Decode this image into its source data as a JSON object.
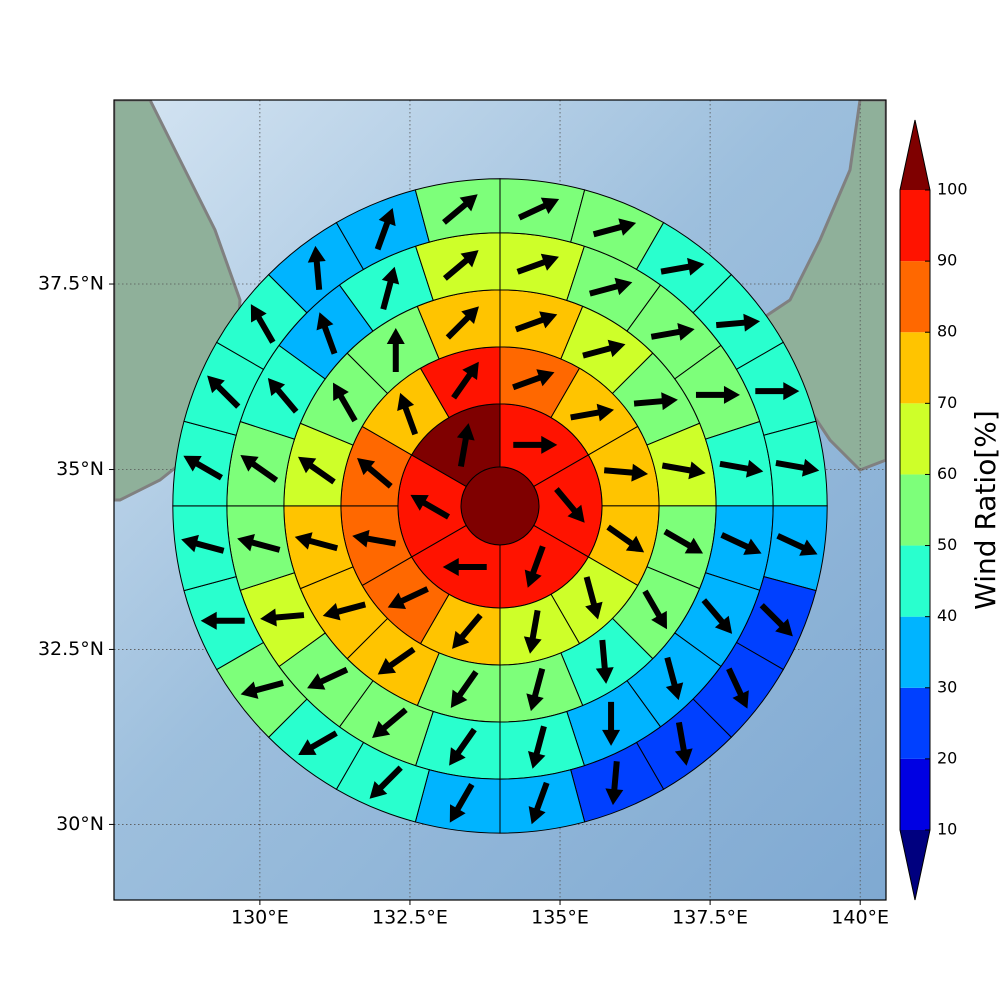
{
  "chart_data": {
    "type": "polar_grid",
    "projection": "mercator",
    "xlim": [
      127.57,
      140.43
    ],
    "ylim": [
      28.9,
      39.9
    ],
    "xticks": [
      {
        "value": 130,
        "label": "130°E"
      },
      {
        "value": 132.5,
        "label": "132.5°E"
      },
      {
        "value": 135,
        "label": "135°E"
      },
      {
        "value": 137.5,
        "label": "137.5°E"
      },
      {
        "value": 140,
        "label": "140°E"
      }
    ],
    "yticks": [
      {
        "value": 30,
        "label": "30°N"
      },
      {
        "value": 32.5,
        "label": "32.5°N"
      },
      {
        "value": 35,
        "label": "35°N"
      },
      {
        "value": 37.5,
        "label": "37.5°N"
      }
    ],
    "grid": true,
    "center": [
      134,
      34.5
    ],
    "radii": [
      0,
      0.65,
      1.7,
      2.65,
      3.6,
      4.55,
      5.45
    ],
    "rings": [
      {
        "values": [
          105
        ]
      },
      {
        "values": [
          95,
          95,
          95,
          95,
          95,
          105
        ],
        "directions": [
          90,
          140,
          200,
          270,
          300,
          10
        ]
      },
      {
        "values": [
          85,
          75,
          75,
          75,
          65,
          65,
          75,
          85,
          85,
          85,
          75,
          95
        ],
        "directions": [
          70,
          80,
          95,
          125,
          165,
          190,
          220,
          245,
          280,
          310,
          340,
          35
        ]
      },
      {
        "values": [
          75,
          65,
          55,
          65,
          55,
          55,
          45,
          55,
          55,
          75,
          75,
          75,
          65,
          55,
          55,
          75
        ],
        "directions": [
          70,
          75,
          85,
          100,
          120,
          150,
          175,
          195,
          215,
          235,
          255,
          285,
          305,
          330,
          0,
          45
        ]
      },
      {
        "values": [
          65,
          55,
          55,
          55,
          45,
          35,
          35,
          35,
          35,
          45,
          45,
          55,
          55,
          65,
          55,
          55,
          45,
          35,
          45,
          65
        ],
        "directions": [
          70,
          75,
          80,
          90,
          100,
          115,
          140,
          165,
          180,
          195,
          215,
          230,
          245,
          265,
          285,
          305,
          320,
          340,
          15,
          50
        ]
      },
      {
        "values": [
          55,
          55,
          45,
          45,
          45,
          45,
          35,
          25,
          25,
          25,
          25,
          35,
          35,
          45,
          45,
          55,
          45,
          45,
          45,
          45,
          45,
          35,
          35,
          55
        ],
        "directions": [
          65,
          75,
          80,
          85,
          90,
          100,
          115,
          135,
          155,
          170,
          185,
          200,
          210,
          225,
          240,
          255,
          270,
          285,
          300,
          315,
          330,
          355,
          20,
          50
        ]
      }
    ],
    "colorbar": {
      "label": "Wind Ratio[%]",
      "ticks": [
        10,
        20,
        30,
        40,
        50,
        60,
        70,
        80,
        90,
        100
      ],
      "colors": [
        "#00007f",
        "#0000e3",
        "#0040ff",
        "#00b4ff",
        "#29ffce",
        "#7dff7a",
        "#ceff29",
        "#ffc400",
        "#ff6800",
        "#ff1300",
        "#7f0000"
      ]
    }
  }
}
